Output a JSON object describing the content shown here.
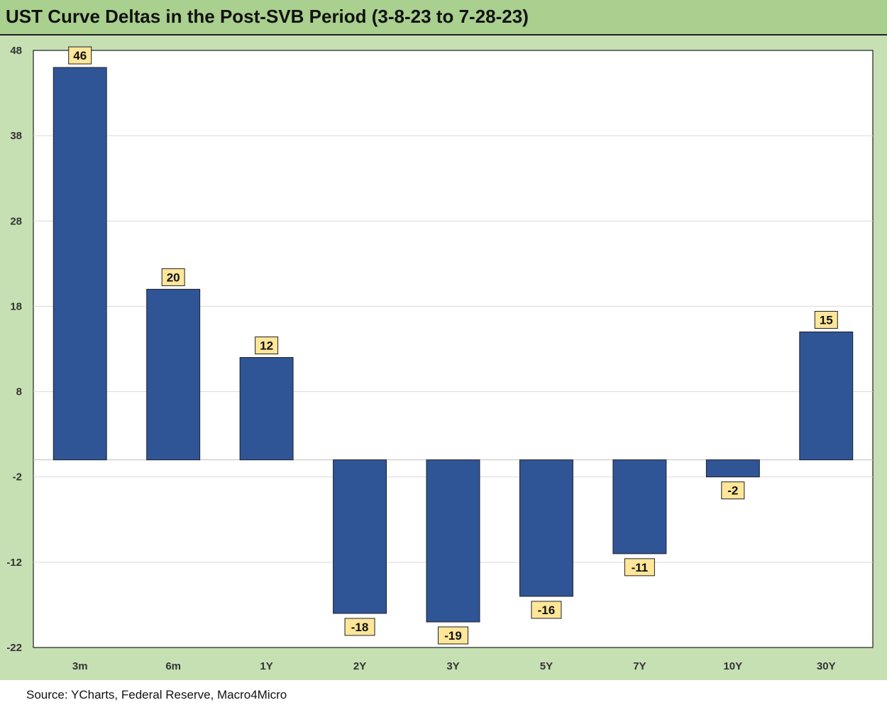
{
  "title": "UST Curve Deltas in the Post-SVB Period (3-8-23 to 7-28-23)",
  "source": "Source: YCharts, Federal Reserve, Macro4Micro",
  "colors": {
    "title_bg": "#a9d08e",
    "chart_bg": "#c6e0b4",
    "plot_bg": "#ffffff",
    "bar": "#2f5597",
    "label_bg": "#ffe699"
  },
  "chart_data": {
    "type": "bar",
    "title": "UST Curve Deltas in the Post-SVB Period (3-8-23 to 7-28-23)",
    "xlabel": "",
    "ylabel": "",
    "categories": [
      "3m",
      "6m",
      "1Y",
      "2Y",
      "3Y",
      "5Y",
      "7Y",
      "10Y",
      "30Y"
    ],
    "values": [
      46,
      20,
      12,
      -18,
      -19,
      -16,
      -11,
      -2,
      15
    ],
    "data_labels": [
      "46",
      "20",
      "12",
      "-18",
      "-19",
      "-16",
      "-11",
      "-2",
      "15"
    ],
    "ylim": [
      -22,
      48
    ],
    "yticks": [
      48,
      38,
      28,
      18,
      8,
      -2,
      -12,
      -22
    ],
    "ytick_labels": [
      "48",
      "38",
      "28",
      "18",
      "8",
      "-2",
      "-12",
      "-22"
    ],
    "grid": true,
    "legend": "none"
  }
}
